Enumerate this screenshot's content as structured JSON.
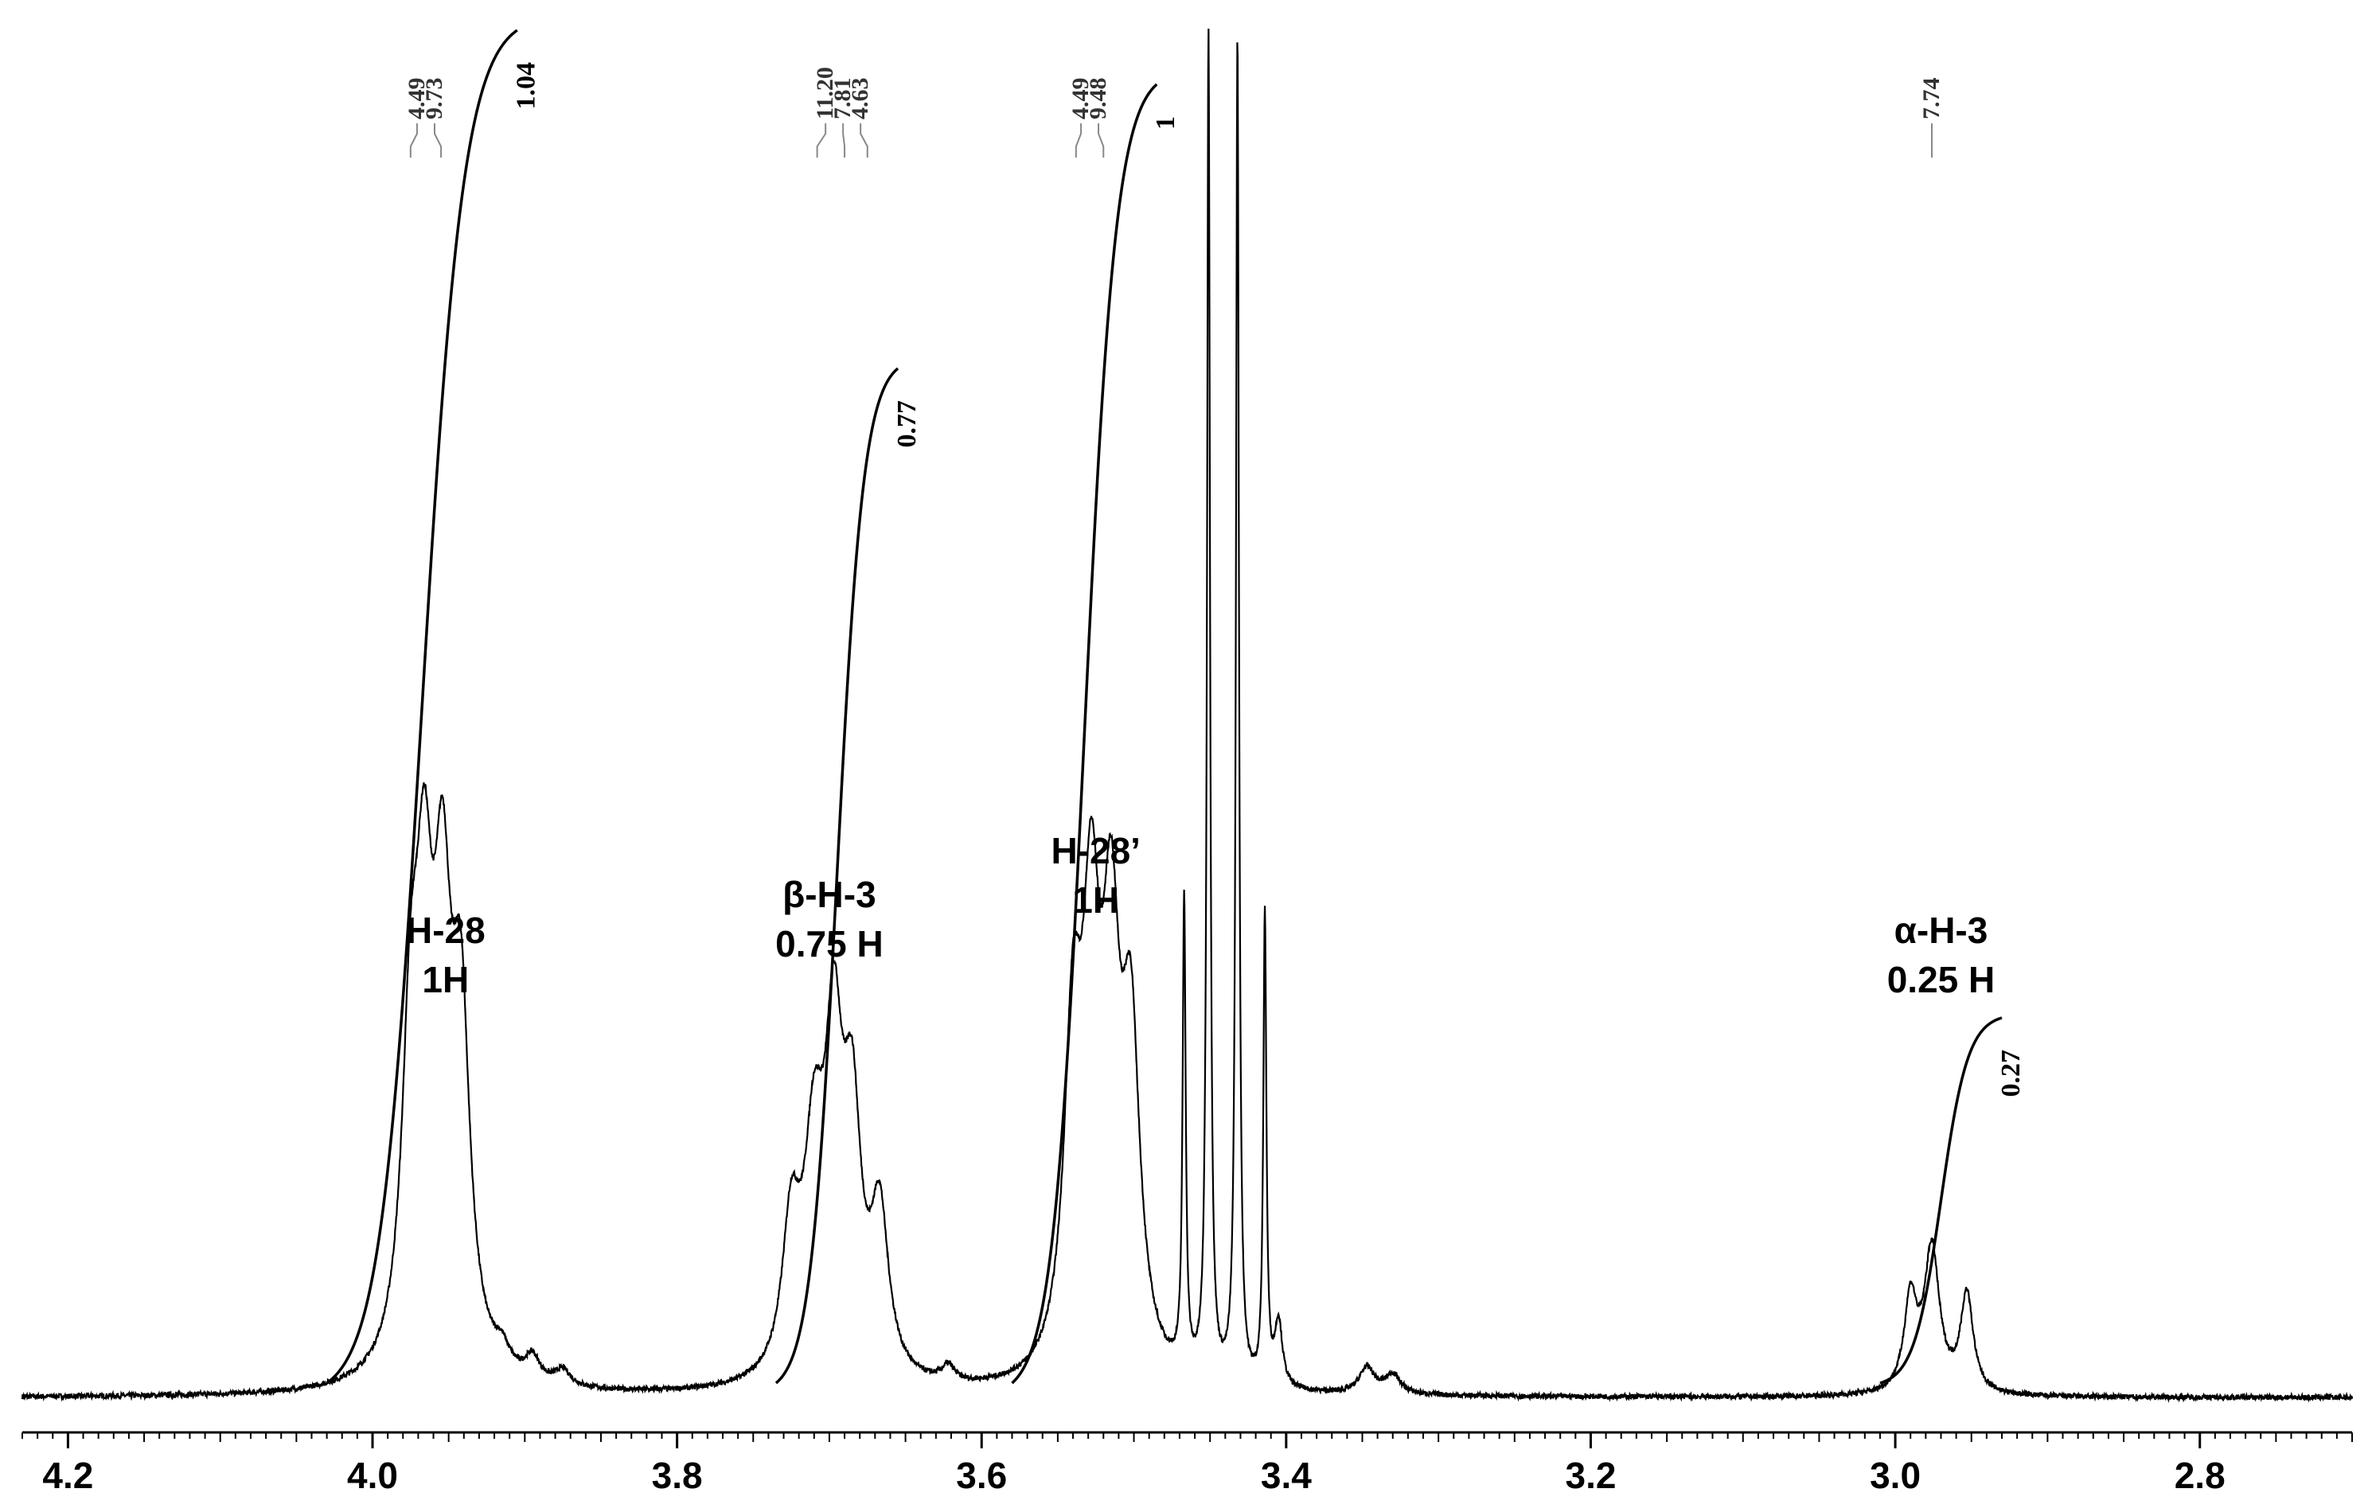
{
  "chart_data": {
    "type": "line",
    "title": "",
    "xlabel": "",
    "ylabel": "",
    "x_axis": {
      "min": 2.7,
      "max": 4.23,
      "reversed": true,
      "major_ticks": [
        4.2,
        4.0,
        3.8,
        3.6,
        3.4,
        3.2,
        3.0,
        2.8
      ],
      "tick_labels": [
        "4.2",
        "4.0",
        "3.8",
        "3.6",
        "3.4",
        "3.2",
        "3.0",
        "2.8"
      ],
      "minor_step": 0.01
    },
    "grid": false,
    "spectrum_peaks": [
      {
        "x": 3.975,
        "h": 0.22,
        "w": 0.007
      },
      {
        "x": 3.966,
        "h": 0.29,
        "w": 0.007
      },
      {
        "x": 3.954,
        "h": 0.3,
        "w": 0.007
      },
      {
        "x": 3.942,
        "h": 0.25,
        "w": 0.007
      },
      {
        "x": 3.915,
        "h": 0.015,
        "w": 0.006
      },
      {
        "x": 3.895,
        "h": 0.018,
        "w": 0.006
      },
      {
        "x": 3.875,
        "h": 0.012,
        "w": 0.006
      },
      {
        "x": 3.725,
        "h": 0.11,
        "w": 0.007
      },
      {
        "x": 3.71,
        "h": 0.16,
        "w": 0.008
      },
      {
        "x": 3.697,
        "h": 0.23,
        "w": 0.007
      },
      {
        "x": 3.685,
        "h": 0.18,
        "w": 0.007
      },
      {
        "x": 3.667,
        "h": 0.12,
        "w": 0.007
      },
      {
        "x": 3.622,
        "h": 0.012,
        "w": 0.005
      },
      {
        "x": 3.54,
        "h": 0.24,
        "w": 0.007
      },
      {
        "x": 3.528,
        "h": 0.3,
        "w": 0.007
      },
      {
        "x": 3.515,
        "h": 0.29,
        "w": 0.007
      },
      {
        "x": 3.502,
        "h": 0.24,
        "w": 0.007
      },
      {
        "x": 3.467,
        "h": 0.36,
        "w": 0.0012
      },
      {
        "x": 3.451,
        "h": 1.03,
        "w": 0.0012
      },
      {
        "x": 3.432,
        "h": 1.03,
        "w": 0.0012
      },
      {
        "x": 3.414,
        "h": 0.36,
        "w": 0.0012
      },
      {
        "x": 3.405,
        "h": 0.05,
        "w": 0.003
      },
      {
        "x": 3.347,
        "h": 0.02,
        "w": 0.006
      },
      {
        "x": 3.33,
        "h": 0.015,
        "w": 0.006
      },
      {
        "x": 2.99,
        "h": 0.07,
        "w": 0.005
      },
      {
        "x": 2.976,
        "h": 0.11,
        "w": 0.006
      },
      {
        "x": 2.953,
        "h": 0.075,
        "w": 0.005
      }
    ],
    "integrals": [
      {
        "x_start": 4.03,
        "x_end": 3.905,
        "value": 1.04,
        "label": "1.04",
        "top": 1.0
      },
      {
        "x_start": 3.735,
        "x_end": 3.655,
        "value": 0.77,
        "label": "0.77",
        "top": 0.75
      },
      {
        "x_start": 3.58,
        "x_end": 3.485,
        "value": 1,
        "label": "1",
        "top": 0.96
      },
      {
        "x_start": 3.01,
        "x_end": 2.93,
        "value": 0.27,
        "label": "0.27",
        "top": 0.27
      }
    ],
    "peak_labels": [
      {
        "group": [
          "4.49",
          "9.73"
        ],
        "x": [
          3.975,
          3.955
        ]
      },
      {
        "group": [
          "11.20",
          "7.81",
          "4.63"
        ],
        "x": [
          3.708,
          3.69,
          3.675
        ]
      },
      {
        "group": [
          "4.49",
          "9.48"
        ],
        "x": [
          3.538,
          3.52
        ]
      },
      {
        "group": [
          "7.74"
        ],
        "x": [
          2.976
        ]
      }
    ],
    "annotations": [
      {
        "lines": [
          "H-28",
          "1H"
        ],
        "x": 3.952
      },
      {
        "lines": [
          "β-H-3",
          "0.75 H"
        ],
        "x": 3.7
      },
      {
        "lines": [
          "H-28’",
          "1H"
        ],
        "x": 3.525
      },
      {
        "lines": [
          "α-H-3",
          "0.25 H"
        ],
        "x": 2.97
      }
    ]
  }
}
